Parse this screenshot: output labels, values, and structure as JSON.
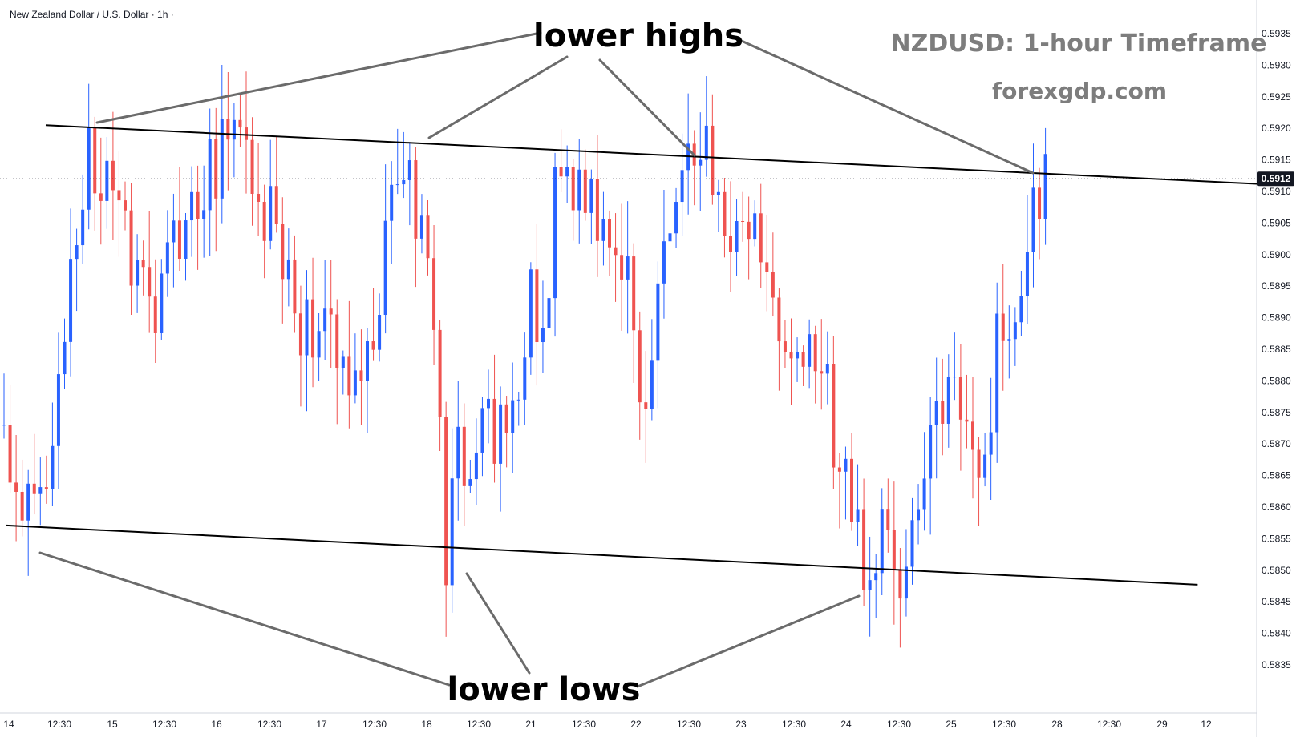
{
  "header": {
    "symbol_desc": "New Zealand Dollar / U.S. Dollar · 1h ·"
  },
  "watermark": {
    "title": "NZDUSD: 1-hour Timeframe",
    "site": "forexgdp.com"
  },
  "annotations": {
    "top_label": "lower highs",
    "bottom_label": "lower lows"
  },
  "colors": {
    "up": "#2962ff",
    "down": "#ef5350",
    "trendline": "#000000",
    "pointer": "#6b6b6b",
    "price_tag": "#131722"
  },
  "current_price": "0.5912",
  "chart_data": {
    "type": "candlestick",
    "symbol": "NZDUSD",
    "timeframe": "1h",
    "y_axis": {
      "ticks": [
        "0.5935",
        "0.5930",
        "0.5925",
        "0.5920",
        "0.5915",
        "0.5910",
        "0.5905",
        "0.5900",
        "0.5895",
        "0.5890",
        "0.5885",
        "0.5880",
        "0.5875",
        "0.5870",
        "0.5865",
        "0.5860",
        "0.5855",
        "0.5850",
        "0.5845",
        "0.5840",
        "0.5835"
      ],
      "range": [
        0.5832,
        0.5937
      ]
    },
    "x_axis": {
      "ticks": [
        "14",
        "12:30",
        "15",
        "12:30",
        "16",
        "12:30",
        "17",
        "12:30",
        "18",
        "12:30",
        "21",
        "12:30",
        "22",
        "12:30",
        "23",
        "12:30",
        "24",
        "12:30",
        "25",
        "12:30",
        "28",
        "12:30",
        "29",
        "12"
      ]
    },
    "trendlines": [
      {
        "name": "upper",
        "points": [
          [
            0,
            0.59205
          ],
          [
            204,
            0.59112
          ]
        ]
      },
      {
        "name": "lower",
        "points": [
          [
            0,
            0.58571
          ],
          [
            197,
            0.58477
          ]
        ]
      }
    ],
    "waypoints": [
      [
        0,
        0.5873
      ],
      [
        5,
        0.5858
      ],
      [
        8,
        0.5866
      ],
      [
        12,
        0.5898
      ],
      [
        15,
        0.5918
      ],
      [
        20,
        0.5904
      ],
      [
        26,
        0.5892
      ],
      [
        32,
        0.591
      ],
      [
        40,
        0.5919
      ],
      [
        45,
        0.5905
      ],
      [
        50,
        0.589
      ],
      [
        56,
        0.5884
      ],
      [
        62,
        0.5883
      ],
      [
        66,
        0.5916
      ],
      [
        68,
        0.5915
      ],
      [
        71,
        0.5895
      ],
      [
        73,
        0.5878
      ],
      [
        74,
        0.585
      ],
      [
        76,
        0.5868
      ],
      [
        80,
        0.5872
      ],
      [
        84,
        0.587
      ],
      [
        88,
        0.5892
      ],
      [
        91,
        0.5888
      ],
      [
        92,
        0.5915
      ],
      [
        96,
        0.591
      ],
      [
        100,
        0.5905
      ],
      [
        104,
        0.5896
      ],
      [
        106,
        0.5874
      ],
      [
        109,
        0.5893
      ],
      [
        112,
        0.5906
      ],
      [
        114,
        0.5917
      ],
      [
        117,
        0.5915
      ],
      [
        120,
        0.59
      ],
      [
        123,
        0.5906
      ],
      [
        127,
        0.59
      ],
      [
        130,
        0.5888
      ],
      [
        134,
        0.5885
      ],
      [
        136,
        0.5882
      ],
      [
        138,
        0.5872
      ],
      [
        141,
        0.5858
      ],
      [
        143,
        0.5852
      ],
      [
        147,
        0.5856
      ],
      [
        149,
        0.5844
      ],
      [
        151,
        0.5854
      ],
      [
        155,
        0.5872
      ],
      [
        158,
        0.5877
      ],
      [
        161,
        0.5872
      ],
      [
        163,
        0.5868
      ],
      [
        165,
        0.5887
      ],
      [
        167,
        0.5891
      ],
      [
        168,
        0.5884
      ],
      [
        170,
        0.5896
      ],
      [
        171,
        0.5913
      ],
      [
        172,
        0.5911
      ]
    ],
    "candle_count": 173
  }
}
